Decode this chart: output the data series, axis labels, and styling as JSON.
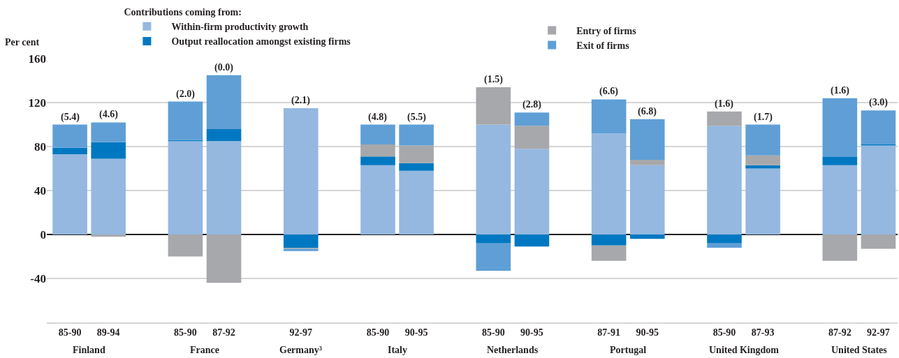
{
  "chart_data": {
    "type": "bar",
    "stacked": true,
    "ylabel": "Per cent",
    "legend_title": "Contributions coming from:",
    "categories": [
      "85-90",
      "89-94",
      null,
      "85-90",
      "87-92",
      null,
      "92-97",
      null,
      "85-90",
      "90-95",
      null,
      "85-90",
      "90-95",
      null,
      "87-91",
      "90-95",
      null,
      "85-90",
      "87-93",
      null,
      "87-92",
      "92-97"
    ],
    "series": [
      {
        "name": "Within-firm productivity growth",
        "color": "#94b8e0",
        "values": [
          73,
          69,
          null,
          85,
          85,
          null,
          115,
          null,
          63,
          58,
          null,
          100,
          78,
          null,
          92,
          63,
          null,
          99,
          60,
          null,
          63,
          81
        ]
      },
      {
        "name": "Output reallocation amongst existing firms",
        "color": "#0078c1",
        "values": [
          6,
          15,
          null,
          1,
          11,
          null,
          -12,
          null,
          8,
          7,
          null,
          -8,
          -11,
          null,
          -10,
          -4,
          null,
          -8,
          3,
          null,
          8,
          1
        ]
      },
      {
        "name": "Entry of firms",
        "color": "#a7a8ab",
        "values": [
          0,
          -2,
          null,
          -20,
          -44,
          null,
          -1,
          null,
          11,
          16,
          null,
          34,
          21,
          null,
          -14,
          5,
          null,
          13,
          9,
          null,
          -24,
          -13
        ]
      },
      {
        "name": "Exit of firms",
        "color": "#5f9fd6",
        "values": [
          21,
          18,
          null,
          35,
          49,
          null,
          -2,
          null,
          18,
          19,
          null,
          -25,
          12,
          null,
          31,
          37,
          null,
          -4,
          28,
          null,
          53,
          31
        ]
      }
    ],
    "annotations": [
      {
        "text": "(5.4)",
        "y": 100
      },
      {
        "text": "(4.6)",
        "y": 102
      },
      {
        "text": "(2.0)",
        "y": 121
      },
      {
        "text": "(0.0)",
        "y": 145
      },
      {
        "text": "(2.1)",
        "y": 115
      },
      {
        "text": "(4.8)",
        "y": 100
      },
      {
        "text": "(5.5)",
        "y": 100
      },
      {
        "text": "(1.5)",
        "y": 134
      },
      {
        "text": "(2.8)",
        "y": 111
      },
      {
        "text": "(6.6)",
        "y": 123
      },
      {
        "text": "(6.8)",
        "y": 105
      },
      {
        "text": "(1.6)",
        "y": 112
      },
      {
        "text": "(1.7)",
        "y": 100
      },
      {
        "text": "(1.6)",
        "y": 124
      },
      {
        "text": "(3.0)",
        "y": 113
      },
      "Finland",
      "France",
      "Germany³",
      "Italy",
      "Netherlands",
      "Portugal",
      "United Kingdom",
      "United States"
    ],
    "ylim": [
      -80,
      160
    ],
    "yticks": [
      {
        "value": -80,
        "label": null
      },
      -40,
      0,
      40,
      80,
      120,
      160
    ],
    "grid": "y",
    "legend": "top"
  }
}
